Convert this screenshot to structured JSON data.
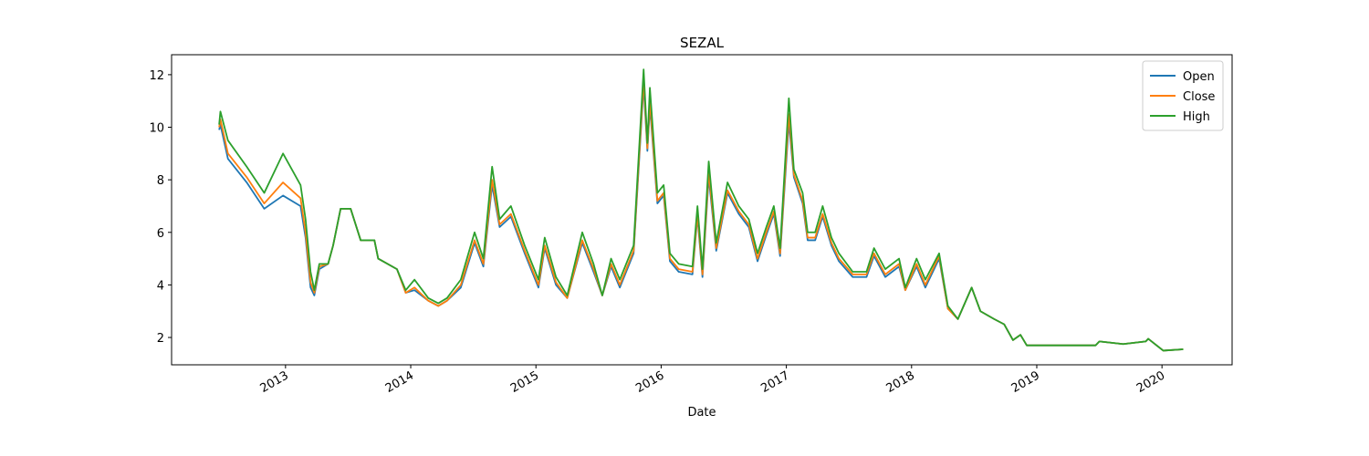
{
  "chart_data": {
    "type": "line",
    "title": "SEZAL",
    "xlabel": "Date",
    "x": [
      2012.47,
      2012.48,
      2012.54,
      2012.69,
      2012.83,
      2012.98,
      2013.12,
      2013.16,
      2013.2,
      2013.23,
      2013.27,
      2013.34,
      2013.38,
      2013.44,
      2013.52,
      2013.6,
      2013.71,
      2013.74,
      2013.89,
      2013.96,
      2014.03,
      2014.14,
      2014.22,
      2014.29,
      2014.4,
      2014.51,
      2014.58,
      2014.65,
      2014.71,
      2014.8,
      2014.91,
      2015.02,
      2015.07,
      2015.16,
      2015.25,
      2015.37,
      2015.46,
      2015.53,
      2015.6,
      2015.67,
      2015.78,
      2015.86,
      2015.89,
      2015.91,
      2015.97,
      2016.02,
      2016.07,
      2016.14,
      2016.25,
      2016.29,
      2016.33,
      2016.38,
      2016.44,
      2016.53,
      2016.62,
      2016.7,
      2016.77,
      2016.84,
      2016.9,
      2016.95,
      2017.02,
      2017.06,
      2017.13,
      2017.17,
      2017.23,
      2017.29,
      2017.36,
      2017.42,
      2017.53,
      2017.64,
      2017.7,
      2017.79,
      2017.9,
      2017.95,
      2018.04,
      2018.11,
      2018.22,
      2018.29,
      2018.37,
      2018.48,
      2018.55,
      2018.66,
      2018.74,
      2018.81,
      2018.87,
      2018.92,
      2019.47,
      2019.5,
      2019.69,
      2019.87,
      2019.89,
      2020.01,
      2020.17
    ],
    "series": [
      {
        "name": "Open",
        "color": "#1f77b4",
        "values": [
          9.9,
          10.1,
          8.8,
          7.9,
          6.9,
          7.4,
          7.0,
          5.8,
          3.9,
          3.6,
          4.6,
          4.8,
          5.5,
          6.9,
          6.9,
          5.7,
          5.7,
          5.0,
          4.6,
          3.7,
          3.8,
          3.4,
          3.2,
          3.4,
          3.9,
          5.6,
          4.7,
          7.8,
          6.2,
          6.6,
          5.2,
          3.9,
          5.4,
          4.0,
          3.5,
          5.6,
          4.5,
          3.6,
          4.7,
          3.9,
          5.2,
          11.6,
          9.1,
          10.8,
          7.1,
          7.4,
          4.9,
          4.5,
          4.4,
          6.6,
          4.3,
          8.1,
          5.3,
          7.5,
          6.7,
          6.2,
          4.9,
          5.9,
          6.7,
          5.1,
          10.2,
          8.1,
          7.1,
          5.7,
          5.7,
          6.6,
          5.5,
          4.9,
          4.3,
          4.3,
          5.1,
          4.3,
          4.7,
          3.8,
          4.7,
          3.9,
          5.0,
          3.1,
          2.7,
          3.9,
          3.0,
          2.7,
          2.5,
          1.9,
          2.1,
          1.7,
          1.7,
          1.85,
          1.75,
          1.85,
          1.95,
          1.5,
          1.55
        ]
      },
      {
        "name": "Close",
        "color": "#ff7f0e",
        "values": [
          10.0,
          10.3,
          9.0,
          8.1,
          7.1,
          7.9,
          7.3,
          6.0,
          4.1,
          3.7,
          4.7,
          4.8,
          5.5,
          6.9,
          6.9,
          5.7,
          5.7,
          5.0,
          4.6,
          3.7,
          3.9,
          3.4,
          3.2,
          3.4,
          4.0,
          5.7,
          4.8,
          8.0,
          6.3,
          6.7,
          5.3,
          4.0,
          5.5,
          4.1,
          3.5,
          5.7,
          4.6,
          3.6,
          4.8,
          4.0,
          5.3,
          11.8,
          9.2,
          11.0,
          7.2,
          7.5,
          5.0,
          4.6,
          4.5,
          6.7,
          4.4,
          8.3,
          5.4,
          7.6,
          6.8,
          6.3,
          5.0,
          6.0,
          6.8,
          5.2,
          10.5,
          8.2,
          7.2,
          5.8,
          5.8,
          6.7,
          5.6,
          5.0,
          4.4,
          4.4,
          5.2,
          4.4,
          4.8,
          3.8,
          4.8,
          4.0,
          5.1,
          3.1,
          2.7,
          3.9,
          3.0,
          2.7,
          2.5,
          1.9,
          2.1,
          1.7,
          1.7,
          1.85,
          1.75,
          1.85,
          1.95,
          1.5,
          1.55
        ]
      },
      {
        "name": "High",
        "color": "#2ca02c",
        "values": [
          10.1,
          10.6,
          9.5,
          8.5,
          7.5,
          9.0,
          7.8,
          6.5,
          4.5,
          3.8,
          4.8,
          4.8,
          5.5,
          6.9,
          6.9,
          5.7,
          5.7,
          5.0,
          4.6,
          3.8,
          4.2,
          3.5,
          3.3,
          3.5,
          4.2,
          6.0,
          5.0,
          8.5,
          6.5,
          7.0,
          5.5,
          4.2,
          5.8,
          4.3,
          3.6,
          6.0,
          4.8,
          3.6,
          5.0,
          4.2,
          5.5,
          12.2,
          9.4,
          11.5,
          7.5,
          7.8,
          5.2,
          4.8,
          4.7,
          7.0,
          4.6,
          8.7,
          5.6,
          7.9,
          7.0,
          6.5,
          5.2,
          6.2,
          7.0,
          5.4,
          11.1,
          8.4,
          7.5,
          6.0,
          6.0,
          7.0,
          5.8,
          5.2,
          4.5,
          4.5,
          5.4,
          4.6,
          5.0,
          3.9,
          5.0,
          4.2,
          5.2,
          3.2,
          2.7,
          3.9,
          3.0,
          2.7,
          2.5,
          1.9,
          2.1,
          1.7,
          1.7,
          1.85,
          1.75,
          1.85,
          1.95,
          1.5,
          1.55
        ]
      }
    ],
    "xlim": [
      2012.09,
      2020.56
    ],
    "xticks": [
      2013,
      2014,
      2015,
      2016,
      2017,
      2018,
      2019,
      2020
    ],
    "ylim": [
      0.96,
      12.76
    ],
    "yticks": [
      2,
      4,
      6,
      8,
      10,
      12
    ],
    "legend": "upper right",
    "grid": false
  }
}
